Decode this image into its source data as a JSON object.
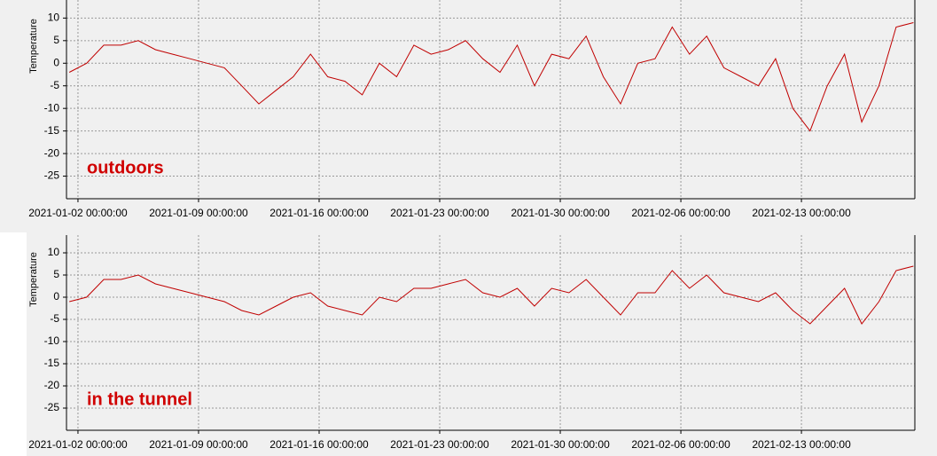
{
  "chart_data": [
    {
      "type": "line",
      "annotation": "outdoors",
      "ylabel": "Temperature",
      "xlim": [
        "2021-01-01 08:00:00",
        "2021-02-19 14:00:00"
      ],
      "xticks": [
        "2021-01-02 00:00:00",
        "2021-01-09 00:00:00",
        "2021-01-16 00:00:00",
        "2021-01-23 00:00:00",
        "2021-01-30 00:00:00",
        "2021-02-06 00:00:00",
        "2021-02-13 00:00:00"
      ],
      "ylim": [
        -30,
        14
      ],
      "yticks": [
        -25,
        -20,
        -15,
        -10,
        -5,
        0,
        5,
        10
      ],
      "grid": true,
      "x": [
        "2021-01-01 12:00:00",
        "2021-01-02 12:00:00",
        "2021-01-03 12:00:00",
        "2021-01-04 12:00:00",
        "2021-01-05 12:00:00",
        "2021-01-06 12:00:00",
        "2021-01-07 12:00:00",
        "2021-01-08 12:00:00",
        "2021-01-09 12:00:00",
        "2021-01-10 12:00:00",
        "2021-01-11 12:00:00",
        "2021-01-12 12:00:00",
        "2021-01-13 12:00:00",
        "2021-01-14 12:00:00",
        "2021-01-15 12:00:00",
        "2021-01-16 12:00:00",
        "2021-01-17 12:00:00",
        "2021-01-18 12:00:00",
        "2021-01-19 12:00:00",
        "2021-01-20 12:00:00",
        "2021-01-21 12:00:00",
        "2021-01-22 12:00:00",
        "2021-01-23 12:00:00",
        "2021-01-24 12:00:00",
        "2021-01-25 12:00:00",
        "2021-01-26 12:00:00",
        "2021-01-27 12:00:00",
        "2021-01-28 12:00:00",
        "2021-01-29 12:00:00",
        "2021-01-30 12:00:00",
        "2021-01-31 12:00:00",
        "2021-02-01 12:00:00",
        "2021-02-02 12:00:00",
        "2021-02-03 12:00:00",
        "2021-02-04 12:00:00",
        "2021-02-05 12:00:00",
        "2021-02-06 12:00:00",
        "2021-02-07 12:00:00",
        "2021-02-08 12:00:00",
        "2021-02-09 12:00:00",
        "2021-02-10 12:00:00",
        "2021-02-11 12:00:00",
        "2021-02-12 12:00:00",
        "2021-02-13 12:00:00",
        "2021-02-14 12:00:00",
        "2021-02-15 12:00:00",
        "2021-02-16 12:00:00",
        "2021-02-17 12:00:00",
        "2021-02-18 12:00:00",
        "2021-02-19 12:00:00"
      ],
      "color": "#c00000",
      "values": [
        -2,
        0,
        4,
        4,
        5,
        3,
        2,
        1,
        0,
        -1,
        -5,
        -9,
        -6,
        -3,
        2,
        -3,
        -4,
        -7,
        0,
        -3,
        4,
        2,
        3,
        5,
        1,
        -2,
        4,
        -5,
        2,
        1,
        6,
        -3,
        -9,
        0,
        1,
        8,
        2,
        6,
        -1,
        -3,
        -5,
        1,
        -10,
        -15,
        -5,
        2,
        -13,
        -5,
        8,
        9
      ]
    },
    {
      "type": "line",
      "annotation": "in the tunnel",
      "ylabel": "Temperature",
      "xlim": [
        "2021-01-01 08:00:00",
        "2021-02-19 14:00:00"
      ],
      "xticks": [
        "2021-01-02 00:00:00",
        "2021-01-09 00:00:00",
        "2021-01-16 00:00:00",
        "2021-01-23 00:00:00",
        "2021-01-30 00:00:00",
        "2021-02-06 00:00:00",
        "2021-02-13 00:00:00"
      ],
      "ylim": [
        -30,
        14
      ],
      "yticks": [
        -25,
        -20,
        -15,
        -10,
        -5,
        0,
        5,
        10
      ],
      "grid": true,
      "x": [
        "2021-01-01 12:00:00",
        "2021-01-02 12:00:00",
        "2021-01-03 12:00:00",
        "2021-01-04 12:00:00",
        "2021-01-05 12:00:00",
        "2021-01-06 12:00:00",
        "2021-01-07 12:00:00",
        "2021-01-08 12:00:00",
        "2021-01-09 12:00:00",
        "2021-01-10 12:00:00",
        "2021-01-11 12:00:00",
        "2021-01-12 12:00:00",
        "2021-01-13 12:00:00",
        "2021-01-14 12:00:00",
        "2021-01-15 12:00:00",
        "2021-01-16 12:00:00",
        "2021-01-17 12:00:00",
        "2021-01-18 12:00:00",
        "2021-01-19 12:00:00",
        "2021-01-20 12:00:00",
        "2021-01-21 12:00:00",
        "2021-01-22 12:00:00",
        "2021-01-23 12:00:00",
        "2021-01-24 12:00:00",
        "2021-01-25 12:00:00",
        "2021-01-26 12:00:00",
        "2021-01-27 12:00:00",
        "2021-01-28 12:00:00",
        "2021-01-29 12:00:00",
        "2021-01-30 12:00:00",
        "2021-01-31 12:00:00",
        "2021-02-01 12:00:00",
        "2021-02-02 12:00:00",
        "2021-02-03 12:00:00",
        "2021-02-04 12:00:00",
        "2021-02-05 12:00:00",
        "2021-02-06 12:00:00",
        "2021-02-07 12:00:00",
        "2021-02-08 12:00:00",
        "2021-02-09 12:00:00",
        "2021-02-10 12:00:00",
        "2021-02-11 12:00:00",
        "2021-02-12 12:00:00",
        "2021-02-13 12:00:00",
        "2021-02-14 12:00:00",
        "2021-02-15 12:00:00",
        "2021-02-16 12:00:00",
        "2021-02-17 12:00:00",
        "2021-02-18 12:00:00",
        "2021-02-19 12:00:00"
      ],
      "color": "#c00000",
      "values": [
        -1,
        0,
        4,
        4,
        5,
        3,
        2,
        1,
        0,
        -1,
        -3,
        -4,
        -2,
        0,
        1,
        -2,
        -3,
        -4,
        0,
        -1,
        2,
        2,
        3,
        4,
        1,
        0,
        2,
        -2,
        2,
        1,
        4,
        0,
        -4,
        1,
        1,
        6,
        2,
        5,
        1,
        0,
        -1,
        1,
        -3,
        -6,
        -2,
        2,
        -6,
        -1,
        6,
        7
      ]
    }
  ]
}
